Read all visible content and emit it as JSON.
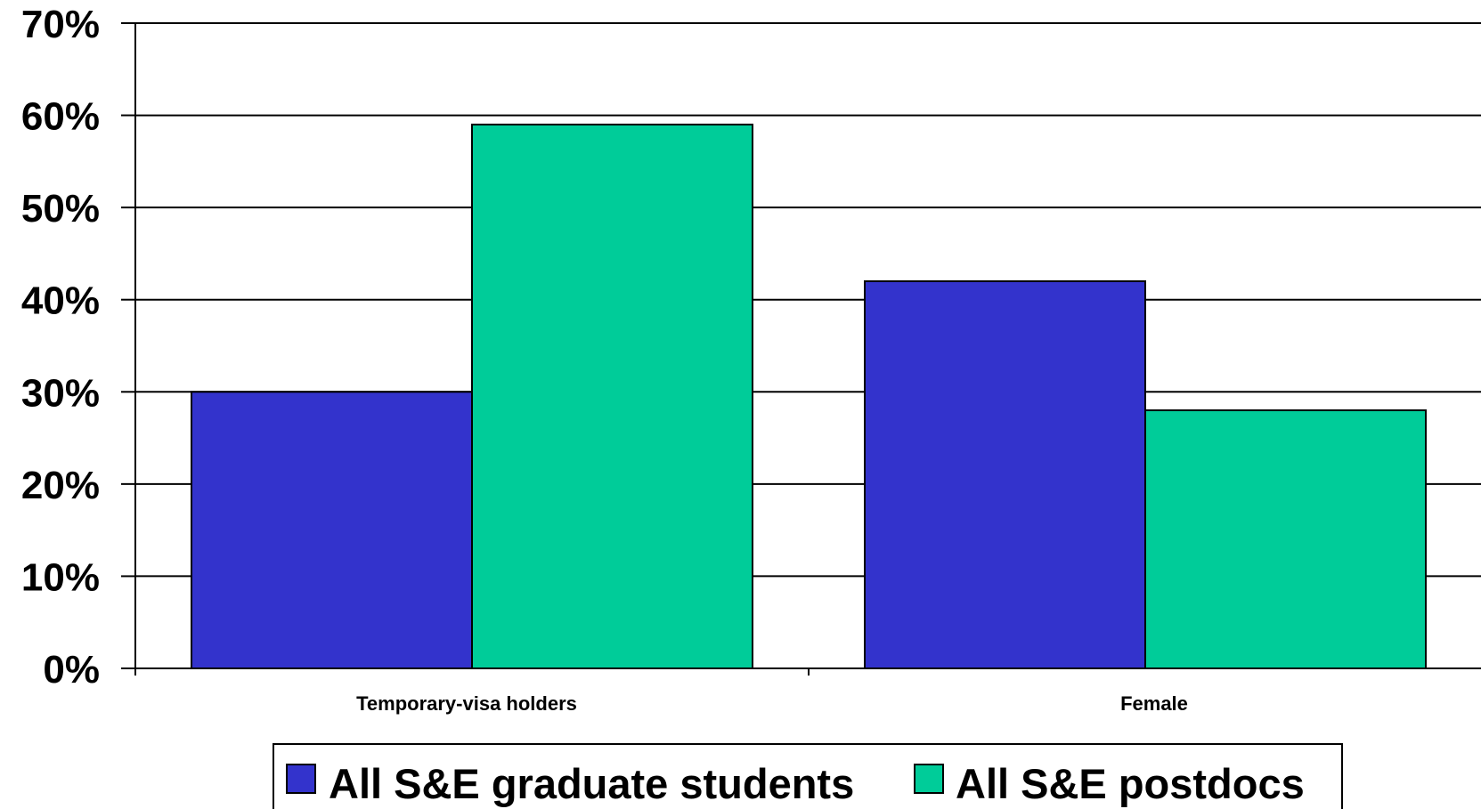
{
  "chart_data": {
    "type": "bar",
    "title": "",
    "xlabel": "",
    "ylabel": "",
    "categories": [
      "Temporary-visa holders",
      "Female"
    ],
    "series": [
      {
        "name": "All S&E graduate students",
        "color": "#3333cc",
        "values": [
          30,
          42
        ]
      },
      {
        "name": "All S&E postdocs",
        "color": "#00cc99",
        "values": [
          59,
          28
        ]
      }
    ],
    "ylim": [
      0,
      70
    ],
    "yticks": [
      0,
      10,
      20,
      30,
      40,
      50,
      60,
      70
    ],
    "ytick_labels": [
      "0%",
      "10%",
      "20%",
      "30%",
      "40%",
      "50%",
      "60%",
      "70%"
    ],
    "grid": true,
    "legend_position": "bottom"
  }
}
